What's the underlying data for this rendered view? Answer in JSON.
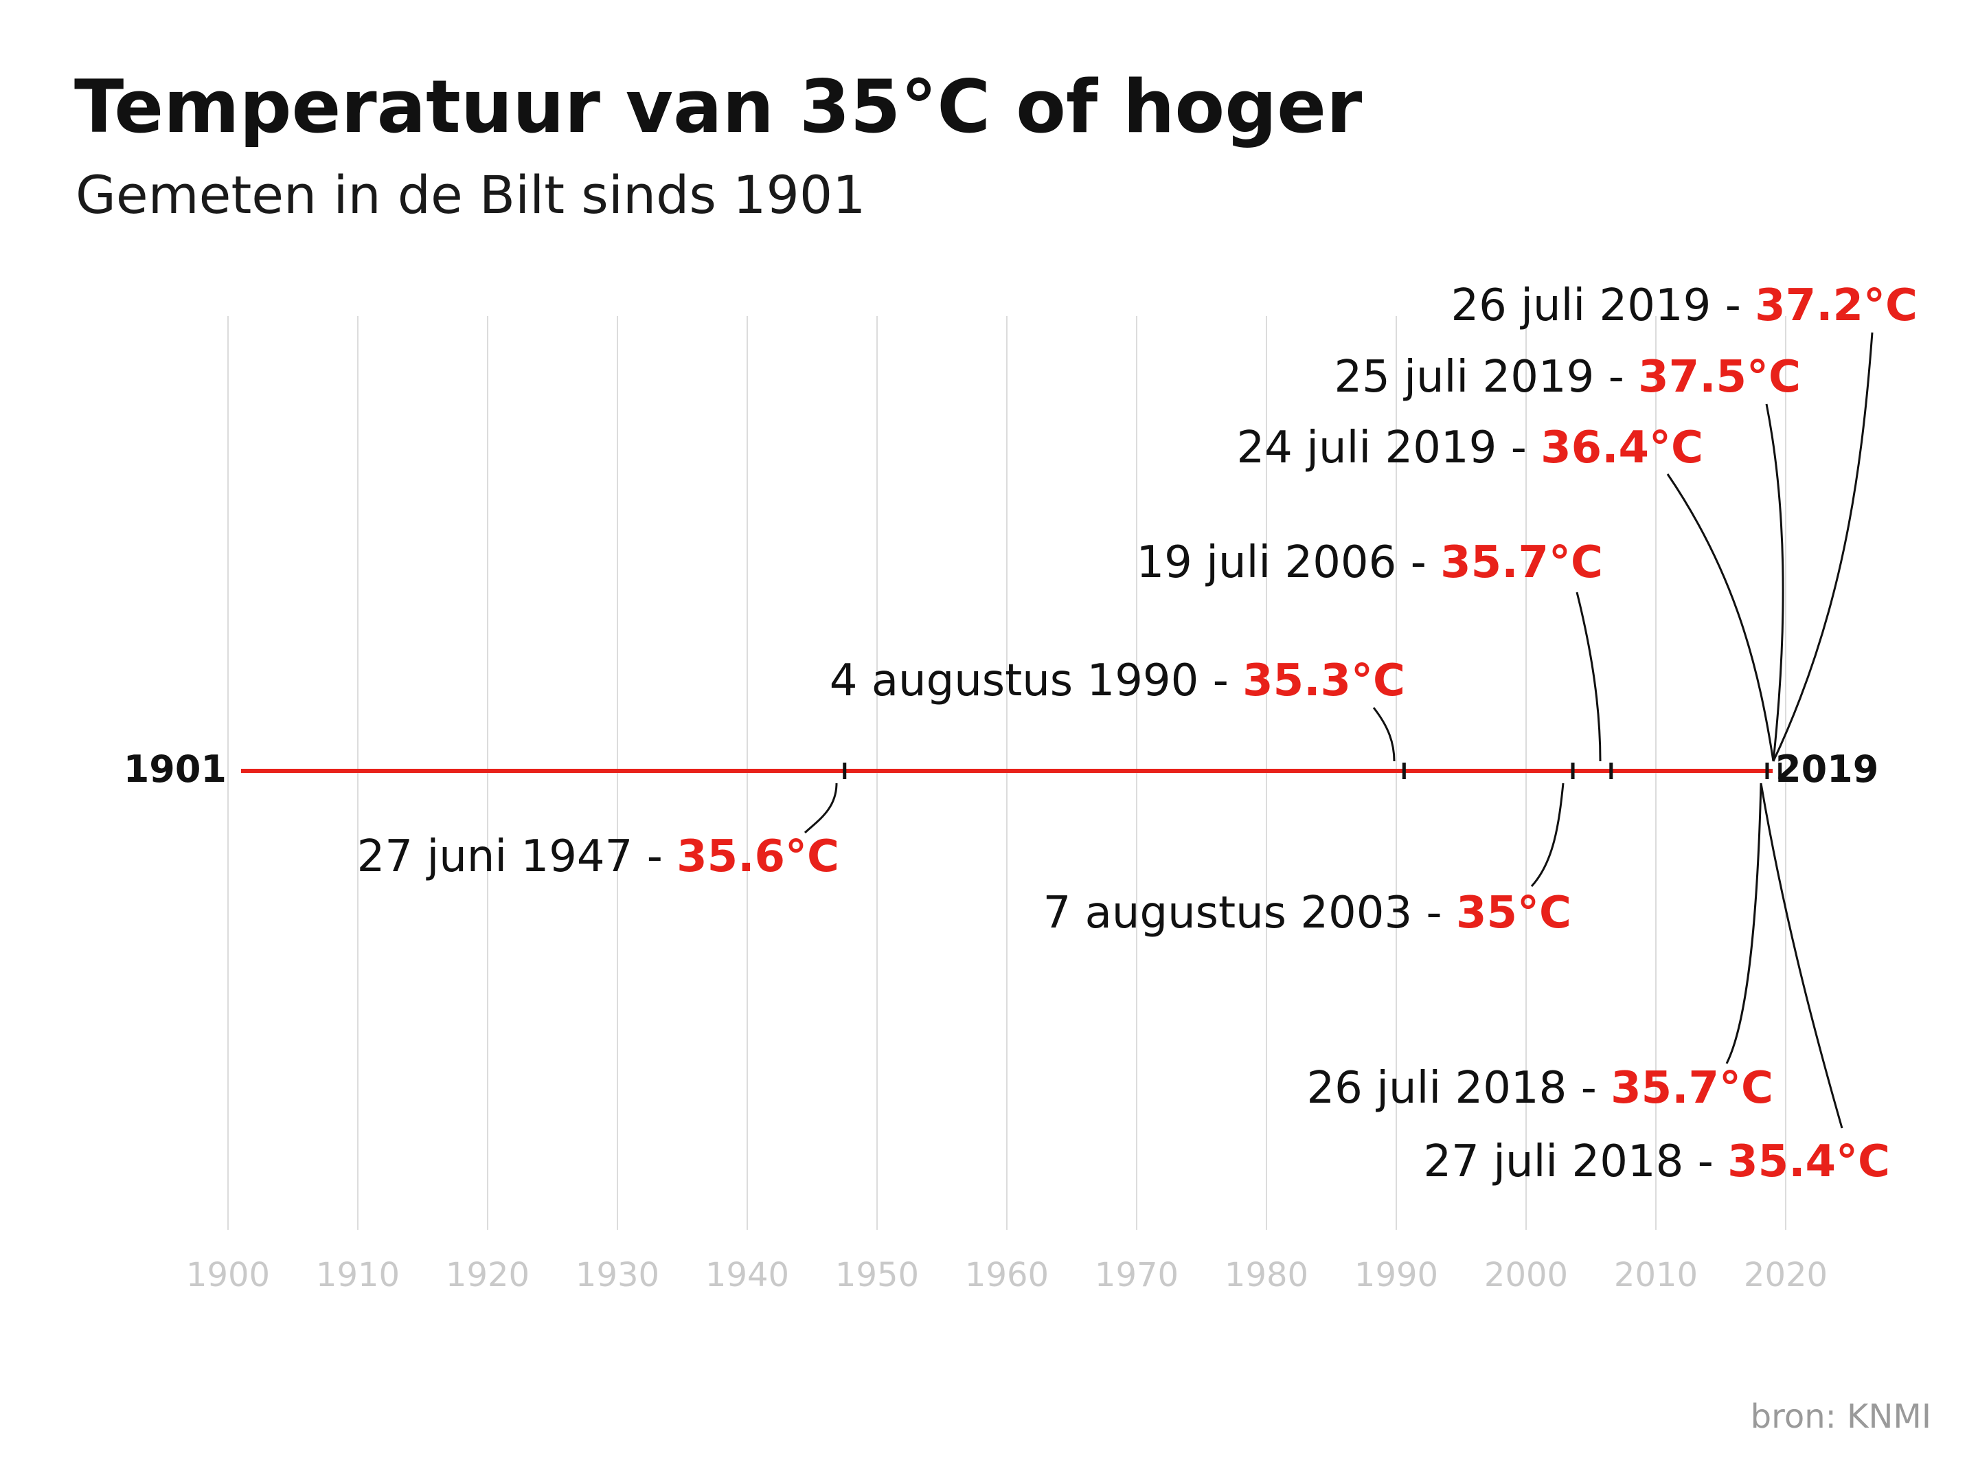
{
  "chart_data": {
    "type": "timeline",
    "title": "Temperatuur van 35°C of hoger",
    "subtitle": "Gemeten in de Bilt sinds 1901",
    "x_ticks": [
      "1900",
      "1910",
      "1920",
      "1930",
      "1940",
      "1950",
      "1960",
      "1970",
      "1980",
      "1990",
      "2000",
      "2010",
      "2020"
    ],
    "xlim": [
      1900,
      2020
    ],
    "range_start_label": "1901",
    "range_end_label": "2019",
    "range": [
      1901,
      2019
    ],
    "events": [
      {
        "date": "27 juni 1947",
        "x": 1947.5,
        "temp": "35.6°C",
        "side": "below"
      },
      {
        "date": "4 augustus 1990",
        "x": 1990.6,
        "temp": "35.3°C",
        "side": "above"
      },
      {
        "date": "7 augustus 2003",
        "x": 2003.6,
        "temp": "35°C",
        "side": "below"
      },
      {
        "date": "19 juli 2006",
        "x": 2006.55,
        "temp": "35.7°C",
        "side": "above"
      },
      {
        "date": "26 juli 2018",
        "x": 2018.57,
        "temp": "35.7°C",
        "side": "below"
      },
      {
        "date": "27 juli 2018",
        "x": 2018.57,
        "temp": "35.4°C",
        "side": "below"
      },
      {
        "date": "24 juli 2019",
        "x": 2019.56,
        "temp": "36.4°C",
        "side": "above"
      },
      {
        "date": "25 juli 2019",
        "x": 2019.56,
        "temp": "37.5°C",
        "side": "above"
      },
      {
        "date": "26 juli 2019",
        "x": 2019.56,
        "temp": "37.2°C",
        "side": "above"
      }
    ],
    "separator": " - ",
    "grid": true,
    "source": "bron: KNMI",
    "colors": {
      "accent": "#e8211a",
      "text": "#111111",
      "grid": "#dcdcdc",
      "tick": "#c9c9c9"
    }
  }
}
